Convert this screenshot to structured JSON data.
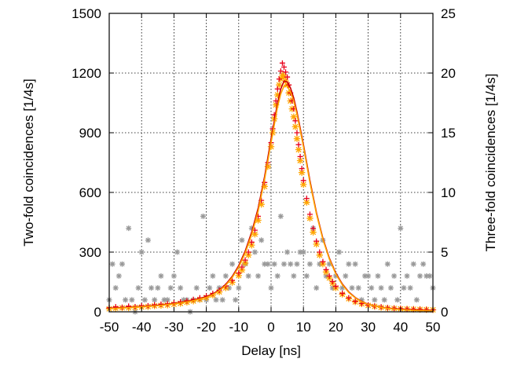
{
  "chart_data": {
    "type": "scatter",
    "title": "",
    "xlabel": "Delay [ns]",
    "ylabel": "Two-fold coincidences [1/4s]",
    "y2label": "Three-fold coincidences [1/4s]",
    "xlim": [
      -50,
      50
    ],
    "ylim": [
      0,
      1500
    ],
    "y2lim": [
      0,
      25
    ],
    "xticks": [
      "-50",
      "-40",
      "-30",
      "-20",
      "-10",
      "0",
      "10",
      "20",
      "30",
      "40",
      "50"
    ],
    "yticks": [
      "0",
      "300",
      "600",
      "900",
      "1200",
      "1500"
    ],
    "y2ticks": [
      "0",
      "5",
      "10",
      "15",
      "20",
      "25"
    ],
    "grid": true,
    "legend": "none",
    "series": [
      {
        "marker": "cross-plus",
        "axis": "left",
        "color": "#e8001c",
        "x": [
          -50,
          -48,
          -46,
          -44,
          -42,
          -40,
          -38,
          -36,
          -34,
          -32,
          -30,
          -28,
          -26,
          -24,
          -22,
          -20,
          -18,
          -16,
          -14,
          -12,
          -10,
          -9,
          -8,
          -7,
          -6,
          -5,
          -4,
          -3,
          -2,
          -1,
          0,
          0.5,
          1,
          1.5,
          2,
          2.5,
          3,
          3.5,
          4,
          4.5,
          5,
          5.5,
          6,
          6.5,
          7,
          7.5,
          8,
          8.5,
          9,
          9.5,
          10,
          11,
          12,
          13,
          14,
          15,
          16,
          17,
          18,
          19,
          20,
          22,
          24,
          26,
          28,
          30,
          32,
          34,
          36,
          38,
          40,
          42,
          44,
          46,
          48,
          50
        ],
        "y": [
          20,
          25,
          22,
          28,
          25,
          30,
          30,
          35,
          38,
          40,
          45,
          50,
          55,
          62,
          70,
          80,
          92,
          108,
          130,
          158,
          195,
          225,
          260,
          300,
          350,
          410,
          480,
          560,
          650,
          750,
          850,
          920,
          990,
          1060,
          1120,
          1170,
          1210,
          1250,
          1230,
          1205,
          1180,
          1140,
          1100,
          1060,
          1020,
          960,
          900,
          840,
          780,
          720,
          660,
          570,
          490,
          420,
          355,
          300,
          252,
          212,
          180,
          152,
          128,
          93,
          70,
          53,
          42,
          34,
          28,
          24,
          20,
          18,
          16,
          14,
          13,
          12,
          11,
          10
        ]
      },
      {
        "marker": "star",
        "axis": "left",
        "color": "#ffa500",
        "x": [
          -50,
          -48,
          -46,
          -44,
          -42,
          -40,
          -38,
          -36,
          -34,
          -32,
          -30,
          -28,
          -26,
          -24,
          -22,
          -20,
          -18,
          -16,
          -14,
          -12,
          -10,
          -9,
          -8,
          -7,
          -6,
          -5,
          -4,
          -3,
          -2,
          -1,
          0,
          0.5,
          1,
          1.5,
          2,
          2.5,
          3,
          3.5,
          4,
          4.5,
          5,
          5.5,
          6,
          6.5,
          7,
          7.5,
          8,
          8.5,
          9,
          9.5,
          10,
          11,
          12,
          13,
          14,
          15,
          16,
          17,
          18,
          19,
          20,
          22,
          24,
          26,
          28,
          30,
          32,
          34,
          36,
          38,
          40,
          42,
          44,
          46,
          48,
          50
        ],
        "y": [
          15,
          18,
          20,
          20,
          22,
          24,
          26,
          30,
          32,
          34,
          38,
          42,
          48,
          54,
          62,
          72,
          84,
          100,
          120,
          148,
          182,
          210,
          245,
          285,
          335,
          390,
          460,
          540,
          630,
          730,
          830,
          900,
          970,
          1040,
          1090,
          1140,
          1170,
          1190,
          1180,
          1160,
          1140,
          1100,
          1060,
          1020,
          980,
          930,
          870,
          815,
          760,
          700,
          640,
          550,
          470,
          400,
          340,
          285,
          240,
          200,
          170,
          144,
          120,
          88,
          66,
          50,
          40,
          32,
          27,
          22,
          19,
          17,
          15,
          14,
          13,
          12,
          11,
          10
        ]
      },
      {
        "marker": "star",
        "axis": "right",
        "color": "#999999",
        "x": [
          -50,
          -49,
          -48,
          -47,
          -46,
          -45,
          -44,
          -43,
          -42,
          -41,
          -40,
          -39,
          -38,
          -37,
          -36,
          -35,
          -34,
          -33,
          -32,
          -31,
          -30,
          -29,
          -28,
          -27,
          -26,
          -25,
          -24,
          -23,
          -22,
          -21,
          -20,
          -19,
          -18,
          -17,
          -16,
          -15,
          -14,
          -13,
          -12,
          -11,
          -10,
          -9,
          -8,
          -7,
          -6,
          -5,
          -4,
          -3,
          -2,
          -1,
          0,
          1,
          2,
          3,
          4,
          5,
          6,
          7,
          8,
          9,
          10,
          11,
          12,
          13,
          14,
          15,
          16,
          17,
          18,
          19,
          20,
          21,
          22,
          23,
          24,
          25,
          26,
          27,
          28,
          29,
          30,
          31,
          32,
          33,
          34,
          35,
          36,
          37,
          38,
          39,
          40,
          41,
          42,
          43,
          44,
          45,
          46,
          47,
          48,
          49,
          50
        ],
        "y": [
          1,
          4,
          2,
          3,
          4,
          1,
          7,
          1,
          0,
          2,
          5,
          1,
          6,
          2,
          1,
          2,
          3,
          1,
          1,
          2,
          3,
          5,
          2,
          1,
          1,
          0,
          1,
          2,
          1,
          8,
          1,
          2,
          3,
          1,
          2,
          1,
          3,
          2,
          4,
          1,
          2,
          6,
          4,
          3,
          7,
          5,
          3,
          6,
          4,
          4,
          2,
          4,
          3,
          8,
          4,
          5,
          4,
          3,
          4,
          5,
          5,
          3,
          4,
          7,
          2,
          4,
          6,
          3,
          4,
          2,
          3,
          5,
          2,
          3,
          4,
          2,
          4,
          2,
          1,
          3,
          3,
          2,
          1,
          3,
          2,
          1,
          4,
          2,
          3,
          1,
          7,
          2,
          3,
          2,
          4,
          1,
          3,
          4,
          3,
          3,
          2
        ]
      },
      {
        "name": "",
        "type": "line",
        "axis": "left",
        "color": "#cc0000",
        "x": [
          -50,
          -45,
          -40,
          -35,
          -30,
          -25,
          -20,
          -18,
          -16,
          -14,
          -12,
          -10,
          -8,
          -6,
          -4,
          -2,
          0,
          1,
          2,
          3,
          4,
          5,
          6,
          7,
          8,
          10,
          12,
          14,
          16,
          18,
          20,
          22,
          24,
          26,
          28,
          30,
          35,
          40,
          45,
          50
        ],
        "y": [
          18,
          22,
          27,
          33,
          42,
          55,
          76,
          90,
          110,
          138,
          178,
          232,
          305,
          400,
          520,
          680,
          870,
          960,
          1050,
          1120,
          1160,
          1155,
          1125,
          1075,
          1005,
          840,
          660,
          500,
          370,
          270,
          195,
          140,
          100,
          72,
          52,
          38,
          20,
          12,
          8,
          5
        ]
      },
      {
        "name": "",
        "type": "line",
        "axis": "left",
        "color": "#ffa500",
        "x": [
          -50,
          -45,
          -40,
          -35,
          -30,
          -25,
          -20,
          -18,
          -16,
          -14,
          -12,
          -10,
          -8,
          -6,
          -4,
          -2,
          0,
          1,
          2,
          3,
          4,
          5,
          6,
          7,
          8,
          10,
          12,
          14,
          16,
          18,
          20,
          22,
          24,
          26,
          28,
          30,
          35,
          40,
          45,
          50
        ],
        "y": [
          16,
          20,
          25,
          31,
          40,
          52,
          72,
          86,
          106,
          133,
          172,
          224,
          295,
          388,
          505,
          665,
          850,
          940,
          1030,
          1095,
          1135,
          1135,
          1105,
          1058,
          992,
          830,
          650,
          493,
          364,
          265,
          190,
          136,
          97,
          70,
          50,
          37,
          19,
          11,
          7,
          5
        ]
      }
    ]
  }
}
